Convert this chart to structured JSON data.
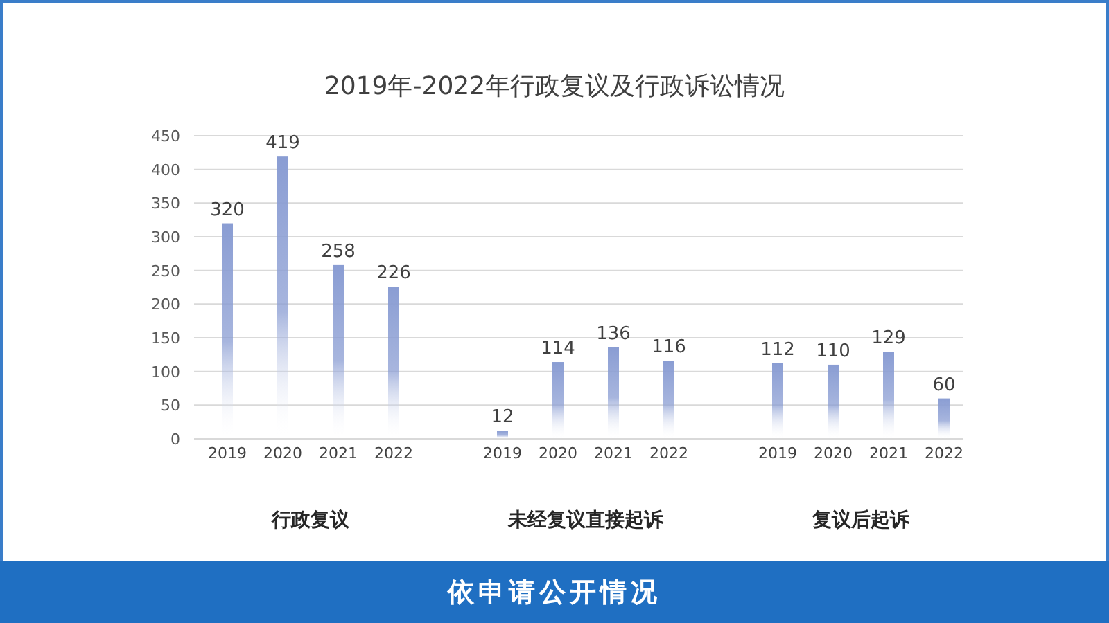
{
  "chart_data": {
    "type": "bar",
    "title": "2019年-2022年行政复议及行政诉讼情况",
    "categories": [
      "2019",
      "2020",
      "2021",
      "2022",
      "2019",
      "2020",
      "2021",
      "2022",
      "2019",
      "2020",
      "2021",
      "2022"
    ],
    "values": [
      320,
      419,
      258,
      226,
      12,
      114,
      136,
      116,
      112,
      110,
      129,
      60
    ],
    "color": "#8a9dd3",
    "ylim": [
      0,
      450
    ],
    "yticks": [
      0,
      50,
      100,
      150,
      200,
      250,
      300,
      350,
      400,
      450
    ],
    "grid": "y",
    "data_labels": true,
    "annotations": [
      "行政复议",
      "未经复议直接起诉",
      "复议后起诉",
      "依申请公开情况"
    ]
  }
}
